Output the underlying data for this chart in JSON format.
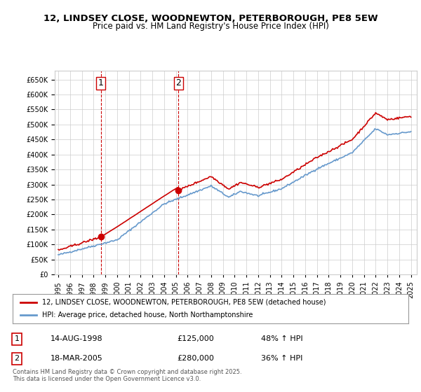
{
  "title_line1": "12, LINDSEY CLOSE, WOODNEWTON, PETERBOROUGH, PE8 5EW",
  "title_line2": "Price paid vs. HM Land Registry's House Price Index (HPI)",
  "legend_line1": "12, LINDSEY CLOSE, WOODNEWTON, PETERBOROUGH, PE8 5EW (detached house)",
  "legend_line2": "HPI: Average price, detached house, North Northamptonshire",
  "footer": "Contains HM Land Registry data © Crown copyright and database right 2025.\nThis data is licensed under the Open Government Licence v3.0.",
  "annotation1_label": "1",
  "annotation1_date": "14-AUG-1998",
  "annotation1_price": "£125,000",
  "annotation1_hpi": "48% ↑ HPI",
  "annotation2_label": "2",
  "annotation2_date": "18-MAR-2005",
  "annotation2_price": "£280,000",
  "annotation2_hpi": "36% ↑ HPI",
  "sale1_x": 1998.62,
  "sale1_y": 125000,
  "sale2_x": 2005.21,
  "sale2_y": 280000,
  "vline1_x": 1998.62,
  "vline2_x": 2005.21,
  "red_color": "#cc0000",
  "blue_color": "#6699cc",
  "background_color": "#ffffff",
  "grid_color": "#cccccc",
  "ylim": [
    0,
    680000
  ],
  "xlim_start": 1995,
  "xlim_end": 2025.5,
  "yticks": [
    0,
    50000,
    100000,
    150000,
    200000,
    250000,
    300000,
    350000,
    400000,
    450000,
    500000,
    550000,
    600000,
    650000
  ],
  "xticks": [
    1995,
    1996,
    1997,
    1998,
    1999,
    2000,
    2001,
    2002,
    2003,
    2004,
    2005,
    2006,
    2007,
    2008,
    2009,
    2010,
    2011,
    2012,
    2013,
    2014,
    2015,
    2016,
    2017,
    2018,
    2019,
    2020,
    2021,
    2022,
    2023,
    2024,
    2025
  ]
}
